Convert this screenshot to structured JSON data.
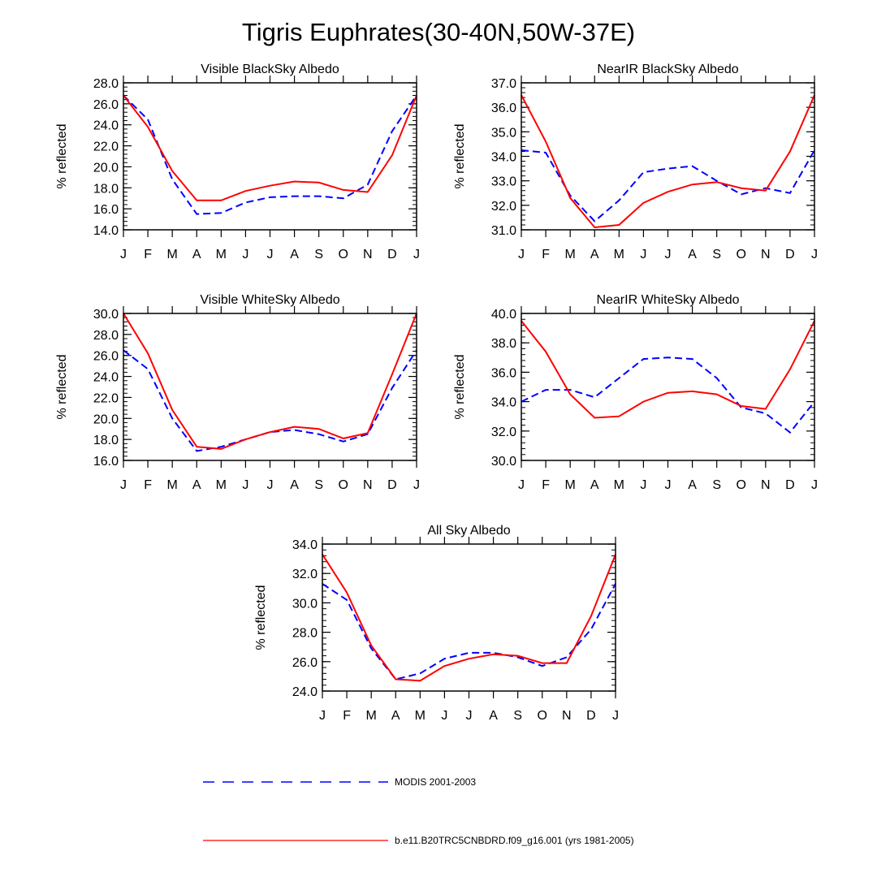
{
  "title": "Tigris Euphrates(30-40N,50W-37E)",
  "legend": {
    "modis_label": "MODIS 2001-2003",
    "model_label": "b.e11.B20TRC5CNBDRD.f09_g16.001 (yrs 1981-2005)"
  },
  "colors": {
    "modis": "#0000ff",
    "model": "#ff0000"
  },
  "chart_data": [
    {
      "type": "line",
      "title": "Visible BlackSky Albedo",
      "ylabel": "% reflected",
      "xlabel": "",
      "categories": [
        "J",
        "F",
        "M",
        "A",
        "M",
        "J",
        "J",
        "A",
        "S",
        "O",
        "N",
        "D",
        "J"
      ],
      "ylim": [
        14.0,
        28.0
      ],
      "yticks": [
        "14.0",
        "16.0",
        "18.0",
        "20.0",
        "22.0",
        "24.0",
        "26.0",
        "28.0"
      ],
      "series": [
        {
          "name": "MODIS 2001-2003",
          "style": "dashed",
          "values": [
            26.8,
            24.5,
            18.8,
            15.5,
            15.6,
            16.6,
            17.1,
            17.2,
            17.2,
            17.0,
            18.3,
            23.4,
            26.8
          ]
        },
        {
          "name": "b.e11.B20TRC5CNBDRD.f09_g16.001 (yrs 1981-2005)",
          "style": "solid",
          "values": [
            26.8,
            23.8,
            19.6,
            16.8,
            16.8,
            17.7,
            18.2,
            18.6,
            18.5,
            17.8,
            17.6,
            21.1,
            26.8
          ]
        }
      ]
    },
    {
      "type": "line",
      "title": "NearIR BlackSky Albedo",
      "ylabel": "% reflected",
      "xlabel": "",
      "categories": [
        "J",
        "F",
        "M",
        "A",
        "M",
        "J",
        "J",
        "A",
        "S",
        "O",
        "N",
        "D",
        "J"
      ],
      "ylim": [
        31.0,
        37.0
      ],
      "yticks": [
        "31.0",
        "32.0",
        "33.0",
        "34.0",
        "35.0",
        "36.0",
        "37.0"
      ],
      "series": [
        {
          "name": "MODIS 2001-2003",
          "style": "dashed",
          "values": [
            34.25,
            34.15,
            32.4,
            31.35,
            32.2,
            33.35,
            33.5,
            33.6,
            33.0,
            32.45,
            32.7,
            32.5,
            34.25
          ]
        },
        {
          "name": "b.e11.B20TRC5CNBDRD.f09_g16.001 (yrs 1981-2005)",
          "style": "solid",
          "values": [
            36.5,
            34.6,
            32.3,
            31.1,
            31.2,
            32.1,
            32.55,
            32.85,
            32.95,
            32.7,
            32.6,
            34.2,
            36.5
          ]
        }
      ]
    },
    {
      "type": "line",
      "title": "Visible WhiteSky Albedo",
      "ylabel": "% reflected",
      "xlabel": "",
      "categories": [
        "J",
        "F",
        "M",
        "A",
        "M",
        "J",
        "J",
        "A",
        "S",
        "O",
        "N",
        "D",
        "J"
      ],
      "ylim": [
        16.0,
        30.0
      ],
      "yticks": [
        "16.0",
        "18.0",
        "20.0",
        "22.0",
        "24.0",
        "26.0",
        "28.0",
        "30.0"
      ],
      "series": [
        {
          "name": "MODIS 2001-2003",
          "style": "dashed",
          "values": [
            26.5,
            24.7,
            20.0,
            16.9,
            17.3,
            18.0,
            18.7,
            18.9,
            18.5,
            17.8,
            18.5,
            22.9,
            26.5
          ]
        },
        {
          "name": "b.e11.B20TRC5CNBDRD.f09_g16.001 (yrs 1981-2005)",
          "style": "solid",
          "values": [
            30.0,
            26.2,
            20.8,
            17.3,
            17.1,
            18.0,
            18.7,
            19.2,
            19.0,
            18.1,
            18.6,
            24.2,
            30.0
          ]
        }
      ]
    },
    {
      "type": "line",
      "title": "NearIR WhiteSky Albedo",
      "ylabel": "% reflected",
      "xlabel": "",
      "categories": [
        "J",
        "F",
        "M",
        "A",
        "M",
        "J",
        "J",
        "A",
        "S",
        "O",
        "N",
        "D",
        "J"
      ],
      "ylim": [
        30.0,
        40.0
      ],
      "yticks": [
        "30.0",
        "32.0",
        "34.0",
        "36.0",
        "38.0",
        "40.0"
      ],
      "series": [
        {
          "name": "MODIS 2001-2003",
          "style": "dashed",
          "values": [
            34.0,
            34.8,
            34.8,
            34.3,
            35.6,
            36.9,
            37.0,
            36.9,
            35.6,
            33.6,
            33.2,
            31.9,
            34.0
          ]
        },
        {
          "name": "b.e11.B20TRC5CNBDRD.f09_g16.001 (yrs 1981-2005)",
          "style": "solid",
          "values": [
            39.5,
            37.4,
            34.5,
            32.9,
            33.0,
            34.0,
            34.6,
            34.7,
            34.5,
            33.7,
            33.5,
            36.2,
            39.5
          ]
        }
      ]
    },
    {
      "type": "line",
      "title": "All Sky Albedo",
      "ylabel": "% reflected",
      "xlabel": "",
      "categories": [
        "J",
        "F",
        "M",
        "A",
        "M",
        "J",
        "J",
        "A",
        "S",
        "O",
        "N",
        "D",
        "J"
      ],
      "ylim": [
        24.0,
        34.0
      ],
      "yticks": [
        "24.0",
        "26.0",
        "28.0",
        "30.0",
        "32.0",
        "34.0"
      ],
      "series": [
        {
          "name": "MODIS 2001-2003",
          "style": "dashed",
          "values": [
            31.3,
            30.2,
            26.9,
            24.8,
            25.2,
            26.2,
            26.6,
            26.6,
            26.3,
            25.7,
            26.3,
            28.2,
            31.3
          ]
        },
        {
          "name": "b.e11.B20TRC5CNBDRD.f09_g16.001 (yrs 1981-2005)",
          "style": "solid",
          "values": [
            33.3,
            30.7,
            27.1,
            24.8,
            24.7,
            25.7,
            26.2,
            26.5,
            26.4,
            25.9,
            25.9,
            29.1,
            33.3
          ]
        }
      ]
    }
  ]
}
